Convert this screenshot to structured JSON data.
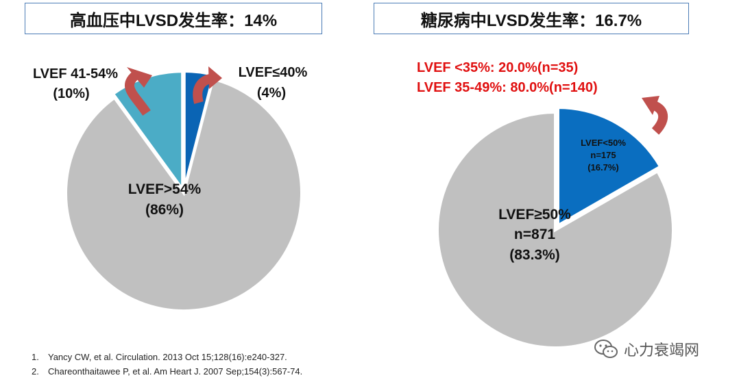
{
  "charts": [
    {
      "title": "高血压中LVSD发生率：14%",
      "labels": {
        "mid": "LVEF 41-54%",
        "mid_pct": "(10%)",
        "low": "LVEF≤40%",
        "low_pct": "(4%)",
        "main": "LVEF>54%",
        "main_pct": "(86%)"
      }
    },
    {
      "title": "糖尿病中LVSD发生率：16.7%",
      "labels": {
        "line1": "LVEF <35%: 20.0%(n=35)",
        "line2": "LVEF 35-49%: 80.0%(n=140)",
        "slice_name": "LVEF<50%",
        "slice_n": "n=175",
        "slice_pct": "(16.7%)",
        "main_name": "LVEF≥50%",
        "main_n": "n=871",
        "main_pct": "(83.3%)"
      }
    }
  ],
  "chart_data": [
    {
      "type": "pie",
      "title": "高血压中LVSD发生率：14%",
      "categories": [
        "LVEF≤40%",
        "LVEF>54%",
        "LVEF 41-54%"
      ],
      "values": [
        4,
        86,
        10
      ],
      "colors": [
        "#0a64b4",
        "#c0c0c0",
        "#4bacc6"
      ],
      "exploded": [
        true,
        false,
        true
      ]
    },
    {
      "type": "pie",
      "title": "糖尿病中LVSD发生率：16.7%",
      "categories": [
        "LVEF<50%",
        "LVEF≥50%"
      ],
      "values": [
        16.7,
        83.3
      ],
      "counts": [
        175,
        871
      ],
      "colors": [
        "#0a6ec0",
        "#c0c0c0"
      ],
      "exploded": [
        true,
        false
      ],
      "breakdown": [
        {
          "label": "LVEF <35%",
          "percent": 20.0,
          "n": 35
        },
        {
          "label": "LVEF 35-49%",
          "percent": 80.0,
          "n": 140
        }
      ]
    }
  ],
  "references": [
    {
      "num": "1.",
      "text": "Yancy CW, et al. Circulation. 2013 Oct 15;128(16):e240-327."
    },
    {
      "num": "2.",
      "text": "Chareonthaitawee P, et al. Am Heart J. 2007 Sep;154(3):567-74."
    }
  ],
  "watermark": {
    "text": "心力衰竭网",
    "icon": "wechat-icon"
  },
  "colors": {
    "arrow": "#c0504d",
    "title_border": "#4a7bb5",
    "red_text": "#e01010"
  }
}
